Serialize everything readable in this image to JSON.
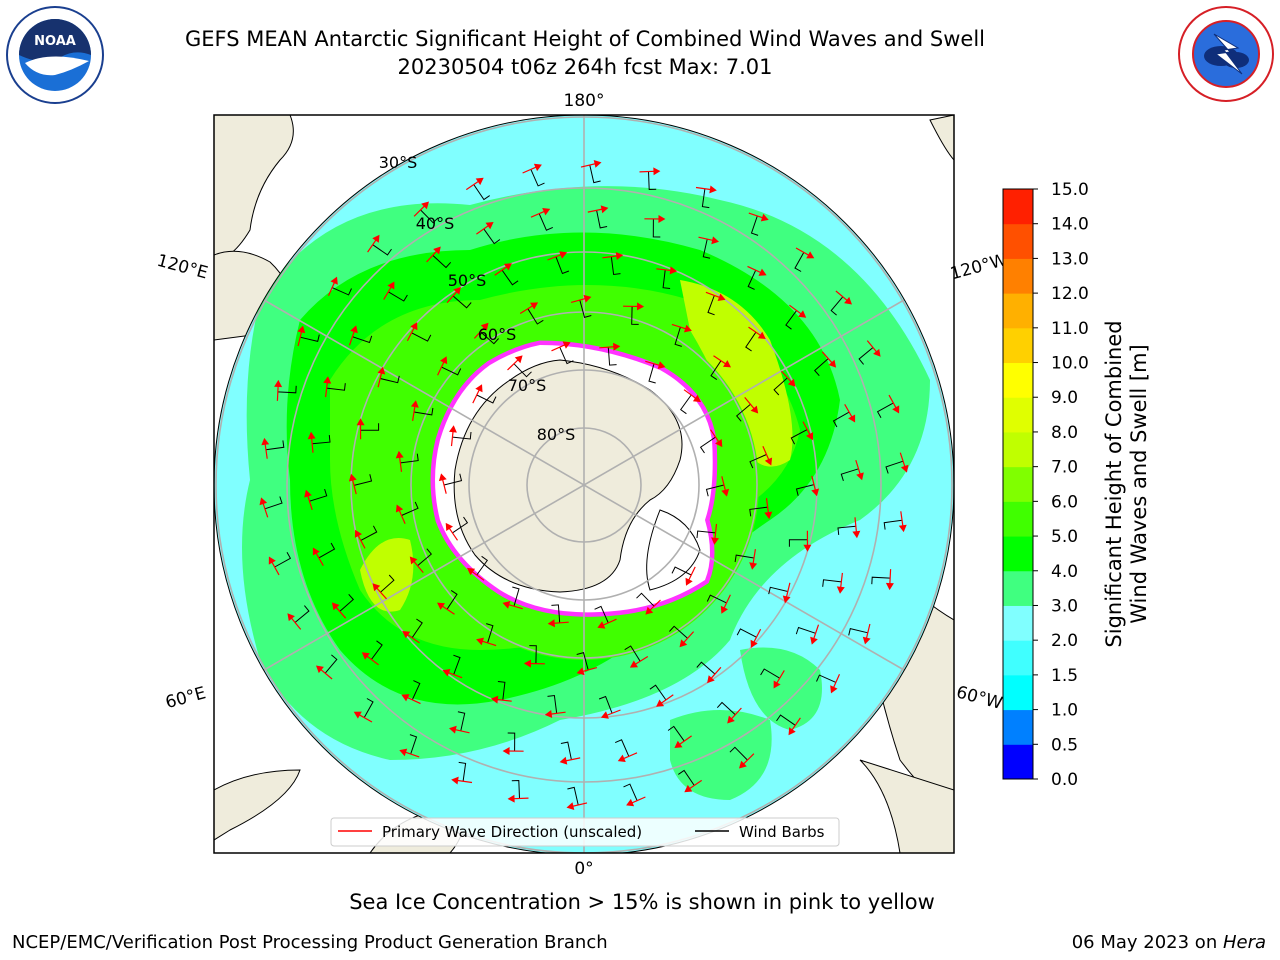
{
  "title": {
    "line1": "GEFS MEAN Antarctic Significant Height of Combined Wind Waves and Swell",
    "line2": "20230504 t06z 264h fcst   Max: 7.01"
  },
  "logos": {
    "left": "NOAA",
    "left_ring_text": "NATIONAL OCEANIC AND ATMOSPHERIC ADMINISTRATION · U.S. DEPARTMENT OF COMMERCE",
    "right_ring_text": "NATIONAL WEATHER SERVICE"
  },
  "map": {
    "projection": "south-polar-stereographic",
    "longitude_labels": {
      "top": "180°",
      "bottom": "0°",
      "upper_left": "120°E",
      "lower_left": "60°E",
      "upper_right": "120°W",
      "lower_right": "60°W"
    },
    "latitude_labels": [
      "30°S",
      "40°S",
      "50°S",
      "60°S",
      "70°S",
      "80°S"
    ],
    "colors": {
      "land": "#efecdc",
      "ice_edge": "#ff33ff",
      "vector_wave": "#ff0000",
      "vector_wind": "#000000"
    }
  },
  "legend": {
    "wave_label": "Primary Wave Direction (unscaled)",
    "wind_label": "Wind Barbs"
  },
  "colorbar": {
    "label_line1": "Significant Height of Combined",
    "label_line2": "Wind Waves and Swell [m]",
    "ticks": [
      "0.0",
      "0.5",
      "1.0",
      "1.5",
      "2.0",
      "3.0",
      "4.0",
      "5.0",
      "6.0",
      "7.0",
      "8.0",
      "9.0",
      "10.0",
      "11.0",
      "12.0",
      "13.0",
      "14.0",
      "15.0"
    ],
    "colors": [
      "#0000ff",
      "#0080ff",
      "#00ffff",
      "#40ffff",
      "#80ffff",
      "#40ff80",
      "#00ff00",
      "#40ff00",
      "#80ff00",
      "#c0ff00",
      "#e0ff00",
      "#ffff00",
      "#ffd000",
      "#ffb000",
      "#ff8000",
      "#ff5000",
      "#ff2000"
    ]
  },
  "subnote": "Sea Ice Concentration > 15% is shown in pink to yellow",
  "footer": {
    "left": "NCEP/EMC/Verification Post Processing Product Generation Branch",
    "right_prefix": "06 May 2023 on ",
    "right_machine": "Hera"
  }
}
